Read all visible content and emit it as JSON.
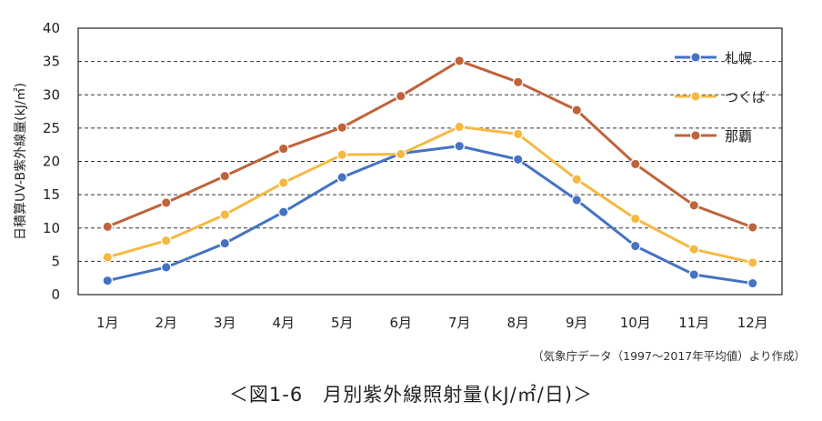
{
  "chart_data": {
    "type": "line",
    "categories": [
      "1月",
      "2月",
      "3月",
      "4月",
      "5月",
      "6月",
      "7月",
      "8月",
      "9月",
      "10月",
      "11月",
      "12月"
    ],
    "ylabel": "日積算UV-B紫外線量(kJ/㎡)",
    "ylim": [
      0,
      40
    ],
    "yticks": [
      0,
      5,
      10,
      15,
      20,
      25,
      30,
      35,
      40
    ],
    "grid": "horizontal dashed",
    "legend_position": "top-right",
    "series": [
      {
        "name": "札幌",
        "color": "#4472C4",
        "values": [
          2.1,
          4.1,
          7.7,
          12.4,
          17.6,
          21.2,
          22.3,
          20.3,
          14.2,
          7.3,
          3.0,
          1.7
        ]
      },
      {
        "name": "つくば",
        "color": "#F5B942",
        "values": [
          5.6,
          8.1,
          12.0,
          16.8,
          21.0,
          21.1,
          25.2,
          24.1,
          17.3,
          11.4,
          6.8,
          4.8
        ]
      },
      {
        "name": "那覇",
        "color": "#C0623A",
        "values": [
          10.2,
          13.8,
          17.8,
          21.9,
          25.1,
          29.8,
          35.1,
          31.9,
          27.7,
          19.6,
          13.4,
          10.1
        ]
      }
    ]
  },
  "source_note": "（気象庁データ（1997～2017年平均値）より作成）",
  "caption": "＜図1-6　月別紫外線照射量(kJ/㎡/日)＞"
}
